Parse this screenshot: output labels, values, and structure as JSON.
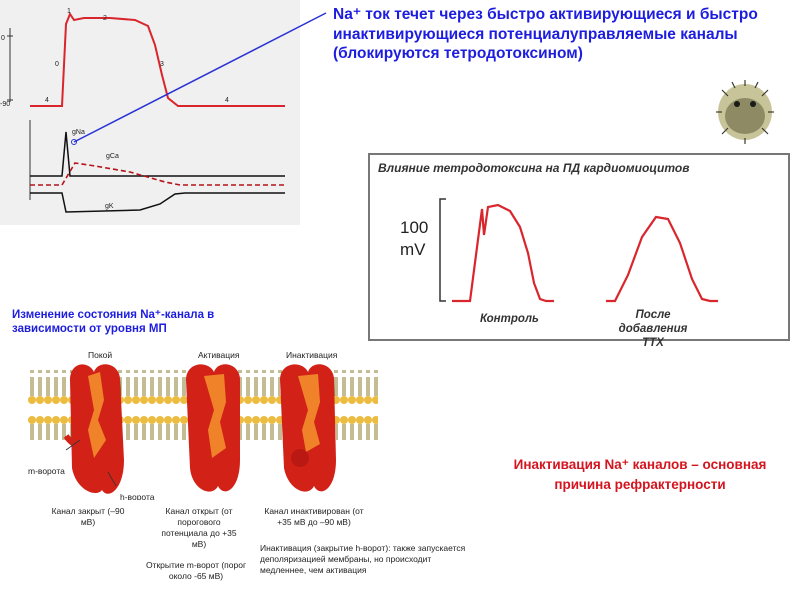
{
  "ap_panel": {
    "y_axis_labels": [
      "0",
      "-90"
    ],
    "phase_labels": [
      "0",
      "1",
      "2",
      "3",
      "4",
      "4"
    ],
    "current_labels": [
      "gNa",
      "gCa",
      "gK"
    ]
  },
  "main_text": "Na⁺ ток течет через быстро активирующиеся и быстро инактивирующиеся потенциалуправляемые каналы (блокируются тетродотоксином)",
  "ttx_panel": {
    "title": "Влияние тетродотоксина на ПД кардиомиоцитов",
    "scale_value": "100",
    "scale_unit": "mV",
    "control_label": "Контроль",
    "after_label": "После добавления TTX"
  },
  "channel_section": {
    "title": "Изменение состояния Na⁺-канала в зависимости от уровня МП",
    "states": [
      "Покой",
      "Активация",
      "Инактивация"
    ],
    "m_gate": "m-ворота",
    "h_gate": "h-ворота",
    "captions": [
      "Канал закрыт (–90 мВ)",
      "Канал открыт (от порогового потенциала до +35 мВ)",
      "Канал инактивирован (от +35 мВ до –90 мВ)"
    ],
    "m_note": "Открытие m-ворот (порог около -65 мВ)",
    "h_note": "Инактивация (закрытие h-ворот): также запускается деполяризацией мембраны, но происходит медленнее, чем активация"
  },
  "conclusion": "Инактивация Na⁺ каналов – основная причина рефрактерности",
  "colors": {
    "accent_blue": "#1d1de0",
    "accent_red": "#d4141e",
    "trace_red": "#d9262c",
    "protein_red": "#d22218",
    "membrane_yellow": "#e9b43c"
  }
}
